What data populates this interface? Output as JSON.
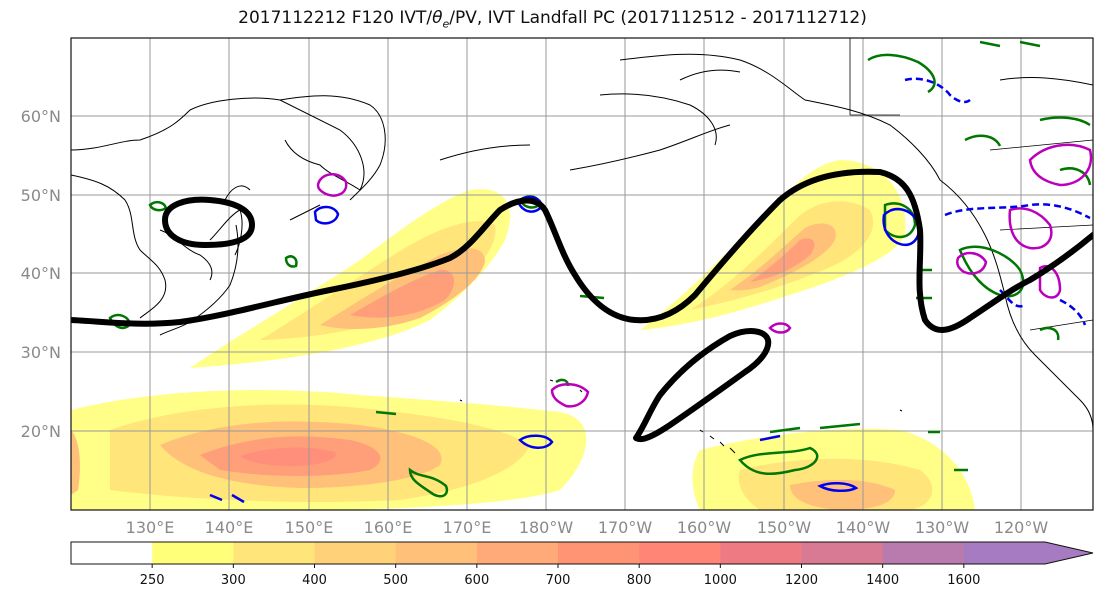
{
  "title": {
    "prefix": "2017112212 F120 IVT/",
    "theta": "θ",
    "theta_sub": "e",
    "suffix": "/PV, IVT Landfall PC (2017112512 - 2017112712)"
  },
  "map": {
    "lon_ticks": [
      "130°E",
      "140°E",
      "150°E",
      "160°E",
      "170°E",
      "180°W",
      "170°W",
      "160°W",
      "150°W",
      "140°W",
      "130°W",
      "120°W"
    ],
    "lat_ticks": [
      "60°N",
      "50°N",
      "40°N",
      "30°N",
      "20°N"
    ],
    "contour_colors": {
      "landfall_pc": "#000000",
      "theta_e": "#007700",
      "pv_positive": "#bb00bb",
      "pv_negative": "#0000ee"
    }
  },
  "colorbar": {
    "levels": [
      "250",
      "300",
      "400",
      "500",
      "600",
      "700",
      "800",
      "1000",
      "1200",
      "1400",
      "1600"
    ],
    "colors": [
      "#ffffff",
      "#ffff7a",
      "#ffe57a",
      "#ffd27a",
      "#ffc07a",
      "#ffaa78",
      "#ff9474",
      "#ff8577",
      "#ee7b83",
      "#d97a94",
      "#b97aad",
      "#a67bc2"
    ]
  }
}
